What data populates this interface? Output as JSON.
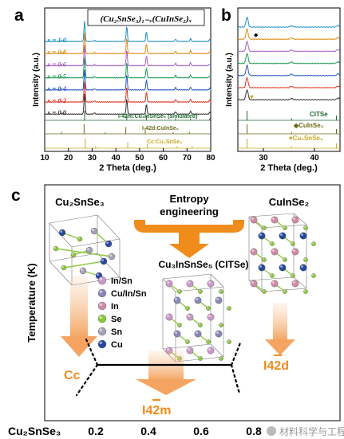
{
  "panel_a": {
    "label": "a",
    "title": "(Cu₂SnSe₃)₁₋ₓ(CuInSe₂)ₓ",
    "ylabel": "Intensity (a.u.)",
    "xlabel": "2 Theta (deg.)",
    "x_ticks": [
      "10",
      "20",
      "30",
      "40",
      "50",
      "60",
      "70",
      "80"
    ],
    "series": [
      {
        "label": "x = 1.0",
        "color": "#1e90c8"
      },
      {
        "label": "x = 0.8",
        "color": "#e08a10"
      },
      {
        "label": "x = 0.6",
        "color": "#a45cc8"
      },
      {
        "label": "x = 0.5",
        "color": "#1e9a50"
      },
      {
        "label": "x = 0.4",
        "color": "#2255c0"
      },
      {
        "label": "x = 0.2",
        "color": "#e03020"
      },
      {
        "label": "x = 0.0",
        "color": "#333333"
      }
    ],
    "reference_labels": {
      "r1": "I-42m:Cu₃InSnSe₅ (simulated)",
      "r2": "I-42d:CuInSe₂",
      "r3": "Cc:Cu₂SnSe₃"
    },
    "reference_colors": {
      "r1": "#1e6a30",
      "r2": "#6a6a18",
      "r3": "#c8a820"
    }
  },
  "panel_b": {
    "label": "b",
    "ylabel": "Intensity (a.u.)",
    "xlabel": "2 Theta (deg.)",
    "x_ticks": [
      "30",
      "40"
    ],
    "labels": {
      "citse": "CITSe",
      "cuinse2": "◆CuInSe₂",
      "cu2snse3": "♥Cu₂SnSe₃"
    },
    "marker_diamond": "◆",
    "marker_heart": "♥"
  },
  "panel_c": {
    "label": "c",
    "ylabel": "Temperature (K)",
    "left_compound": "Cu₂SnSe₃",
    "right_compound": "CuInSe₂",
    "center_compound": "Cu₃InSnSe₅ (CITSe)",
    "entropy_line1": "Entropy",
    "entropy_line2": "engineering",
    "legend": [
      {
        "label": "In/Sn",
        "color": "#c898c8"
      },
      {
        "label": "Cu/In/Sn",
        "color": "#8888b8"
      },
      {
        "label": "In",
        "color": "#d08aa8"
      },
      {
        "label": "Se",
        "color": "#8cc83c"
      },
      {
        "label": "Sn",
        "color": "#a8a0b8"
      },
      {
        "label": "Cu",
        "color": "#2848a0"
      }
    ],
    "phase_left": "Cc",
    "phase_mid": "I42m",
    "phase_right": "I42d",
    "arrow_color": "#f4a460",
    "main_arrow_color": "#f08c1c",
    "x_labels": {
      "start": "Cu₂SnSe₃",
      "t1": "0.2",
      "t2": "0.4",
      "t3": "0.6",
      "t4": "0.8"
    },
    "watermark": "材料科学与工程"
  }
}
